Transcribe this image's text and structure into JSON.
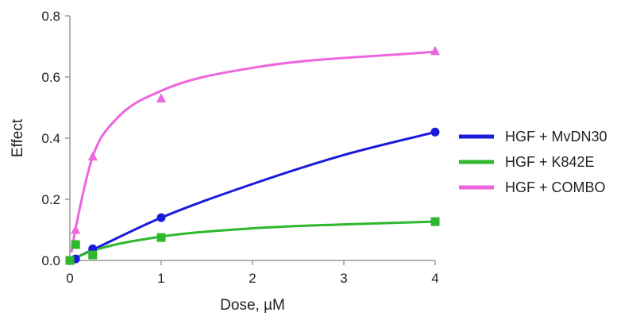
{
  "chart_data": {
    "type": "scatter",
    "xlabel": "Dose, µM",
    "ylabel": "Effect",
    "xlim": [
      0,
      4
    ],
    "ylim": [
      0,
      0.8
    ],
    "xticks": [
      "0",
      "1",
      "2",
      "3",
      "4"
    ],
    "yticks": [
      "0.0",
      "0.2",
      "0.4",
      "0.6",
      "0.8"
    ],
    "grid": false,
    "legend_position": "right",
    "fitted_curves": true,
    "series": [
      {
        "name": "HGF + MvDN30",
        "color": "#1a1adb",
        "marker": "circle",
        "x": [
          0,
          0.0625,
          0.25,
          1,
          4
        ],
        "y": [
          0.0,
          0.005,
          0.038,
          0.14,
          0.42
        ]
      },
      {
        "name": "HGF + K842E",
        "color": "#2db82d",
        "marker": "square",
        "x": [
          0,
          0.0625,
          0.25,
          1,
          4
        ],
        "y": [
          0.0,
          0.052,
          0.018,
          0.075,
          0.127
        ]
      },
      {
        "name": "HGF + COMBO",
        "color": "#ee66dd",
        "marker": "triangle",
        "x": [
          0.0625,
          0.25,
          1,
          4
        ],
        "y": [
          0.1,
          0.34,
          0.53,
          0.685
        ]
      }
    ]
  }
}
